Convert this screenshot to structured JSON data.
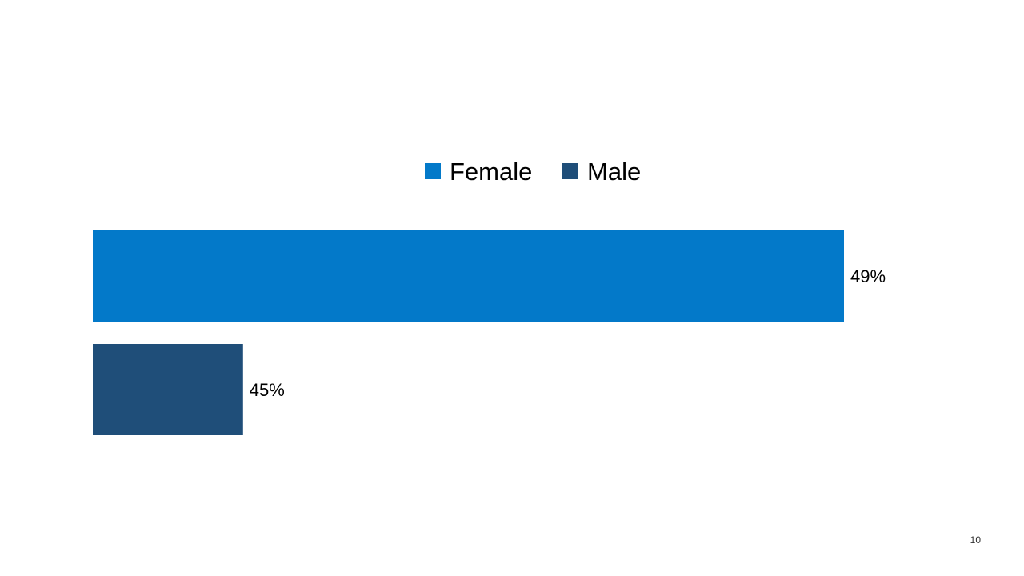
{
  "chart_data": {
    "type": "bar",
    "orientation": "horizontal",
    "series": [
      {
        "name": "Female",
        "value": 49,
        "label": "49%",
        "color": "#0379c9"
      },
      {
        "name": "Male",
        "value": 45,
        "label": "45%",
        "color": "#1f4e79"
      }
    ],
    "legend_position": "top",
    "axes_visible": false,
    "grid": false
  },
  "slide": {
    "page_number": "10"
  }
}
